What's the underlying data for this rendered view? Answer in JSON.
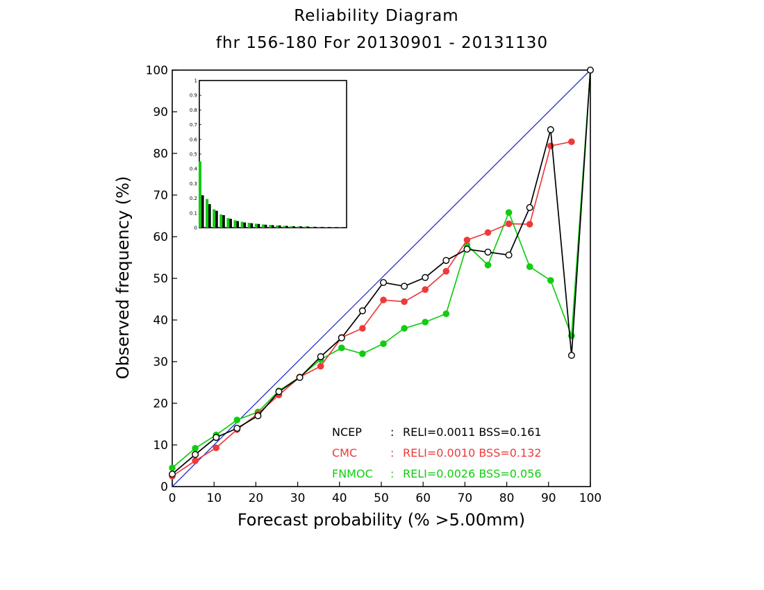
{
  "chart_data": {
    "type": "line",
    "title": "Reliability Diagram",
    "subtitle": "fhr 156-180 For 20130901 - 20131130",
    "xlabel": "Forecast probability (% >5.00mm)",
    "ylabel": "Observed frequency (%)",
    "xlim": [
      0,
      100
    ],
    "ylim": [
      0,
      100
    ],
    "xticks": [
      "0",
      "10",
      "20",
      "30",
      "40",
      "50",
      "60",
      "70",
      "80",
      "90",
      "100"
    ],
    "yticks": [
      "0",
      "10",
      "20",
      "30",
      "40",
      "50",
      "60",
      "70",
      "80",
      "90",
      "100"
    ],
    "grid": false,
    "diagonal": {
      "x": [
        0,
        100
      ],
      "y": [
        0,
        100
      ],
      "color": "#2233bb"
    },
    "series": [
      {
        "name": "NCEP",
        "color": "#000000",
        "marker": "open-circle",
        "legend": {
          "name": "NCEP",
          "sep": ":",
          "stats": "RELI=0.0011  BSS=0.161"
        },
        "x": [
          0,
          5.5,
          10.5,
          15.5,
          20.5,
          25.5,
          30.5,
          35.5,
          40.5,
          45.5,
          50.5,
          55.5,
          60.5,
          65.5,
          70.5,
          75.5,
          80.5,
          85.5,
          90.5,
          95.5,
          100
        ],
        "y": [
          3,
          7.7,
          11.8,
          14,
          17,
          22.8,
          26.2,
          31.2,
          35.7,
          42.2,
          49,
          48.1,
          50.2,
          54.3,
          57,
          56.3,
          55.6,
          67,
          85.7,
          31.5,
          100
        ]
      },
      {
        "name": "CMC",
        "color": "#ee3a3a",
        "marker": "filled-circle",
        "legend": {
          "name": "CMC",
          "sep": ":",
          "stats": "RELI=0.0010  BSS=0.132"
        },
        "x": [
          0,
          5.5,
          10.5,
          15.5,
          20.5,
          25.5,
          30.5,
          35.5,
          40.5,
          45.5,
          50.5,
          55.5,
          60.5,
          65.5,
          70.5,
          75.5,
          80.5,
          85.5,
          90.5,
          95.5
        ],
        "y": [
          2.5,
          6.2,
          9.3,
          13.7,
          17.5,
          22,
          26.3,
          28.9,
          35.8,
          38,
          44.8,
          44.4,
          47.3,
          51.7,
          59.2,
          61,
          63.1,
          63,
          81.8,
          82.8
        ]
      },
      {
        "name": "FNMOC",
        "color": "#11cc11",
        "marker": "filled-circle",
        "legend": {
          "name": "FNMOC",
          "sep": ":",
          "stats": "RELI=0.0026  BSS=0.056"
        },
        "x": [
          0,
          5.5,
          10.5,
          15.5,
          20.5,
          25.5,
          30.5,
          35.5,
          40.5,
          45.5,
          50.5,
          55.5,
          60.5,
          65.5,
          70.5,
          75.5,
          80.5,
          85.5,
          90.5,
          95.5,
          100
        ],
        "y": [
          4.5,
          9.2,
          12.4,
          16,
          17.9,
          23,
          26.3,
          30.5,
          33.3,
          31.9,
          34.3,
          38,
          39.5,
          41.5,
          58,
          53.2,
          65.8,
          52.8,
          49.5,
          36.2,
          100
        ]
      }
    ],
    "inset": {
      "type": "bar",
      "ylim": [
        0,
        1
      ],
      "yticks": [
        "0",
        "0.1",
        "0.2",
        "0.3",
        "0.4",
        "0.5",
        "0.6",
        "0.7",
        "0.8",
        "0.9",
        "1"
      ],
      "series": [
        {
          "name": "NCEP",
          "color": "#000000",
          "values": [
            0.22,
            0.16,
            0.115,
            0.085,
            0.06,
            0.045,
            0.035,
            0.03,
            0.025,
            0.02,
            0.017,
            0.015,
            0.012,
            0.01,
            0.009,
            0.008,
            0.006,
            0.005,
            0.004,
            0.003,
            0.002
          ]
        },
        {
          "name": "FNMOC",
          "color": "#11cc11",
          "values": [
            0.45,
            0.195,
            0.125,
            0.09,
            0.065,
            0.05,
            0.04,
            0.033,
            0.027,
            0.022,
            0.018,
            0.015,
            0.012,
            0.01,
            0.008,
            0.007,
            0.006,
            0.005,
            0.004,
            0.003,
            0.002
          ]
        }
      ]
    }
  }
}
